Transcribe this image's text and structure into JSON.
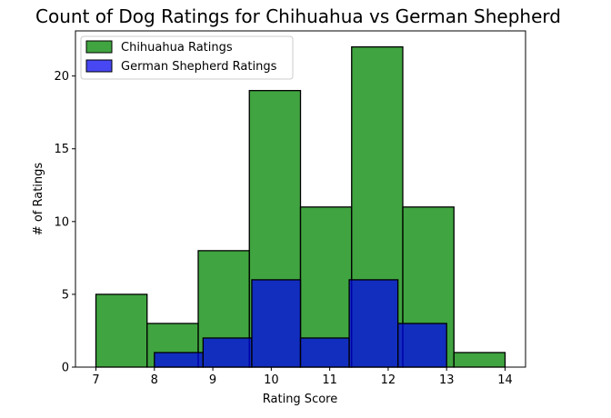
{
  "chart_data": {
    "type": "bar",
    "title": "Count of Dog Ratings for Chihuahua vs German Shepherd",
    "xlabel": "Rating Score",
    "ylabel": "# of Ratings",
    "xlim": [
      6.65,
      14.35
    ],
    "ylim": [
      0,
      23.1
    ],
    "xticks": [
      7,
      8,
      9,
      10,
      11,
      12,
      13,
      14
    ],
    "yticks": [
      0,
      5,
      10,
      15,
      20
    ],
    "grid": false,
    "legend_position": "top-left",
    "series": [
      {
        "name": "Chihuahua Ratings",
        "color": "#0a8a0a",
        "bins": [
          {
            "x0": 7.0,
            "x1": 7.875,
            "value": 5
          },
          {
            "x0": 7.875,
            "x1": 8.75,
            "value": 3
          },
          {
            "x0": 8.75,
            "x1": 9.625,
            "value": 8
          },
          {
            "x0": 9.625,
            "x1": 10.5,
            "value": 19
          },
          {
            "x0": 10.5,
            "x1": 11.375,
            "value": 11
          },
          {
            "x0": 11.375,
            "x1": 12.25,
            "value": 22
          },
          {
            "x0": 12.25,
            "x1": 13.125,
            "value": 11
          },
          {
            "x0": 13.125,
            "x1": 14.0,
            "value": 1
          }
        ]
      },
      {
        "name": "German Shepherd Ratings",
        "color": "#0000ee",
        "bins": [
          {
            "x0": 8.0,
            "x1": 8.833,
            "value": 1
          },
          {
            "x0": 8.833,
            "x1": 9.667,
            "value": 2
          },
          {
            "x0": 9.667,
            "x1": 10.5,
            "value": 6
          },
          {
            "x0": 10.5,
            "x1": 11.333,
            "value": 2
          },
          {
            "x0": 11.333,
            "x1": 12.167,
            "value": 6
          },
          {
            "x0": 12.167,
            "x1": 13.0,
            "value": 3
          }
        ]
      }
    ]
  }
}
